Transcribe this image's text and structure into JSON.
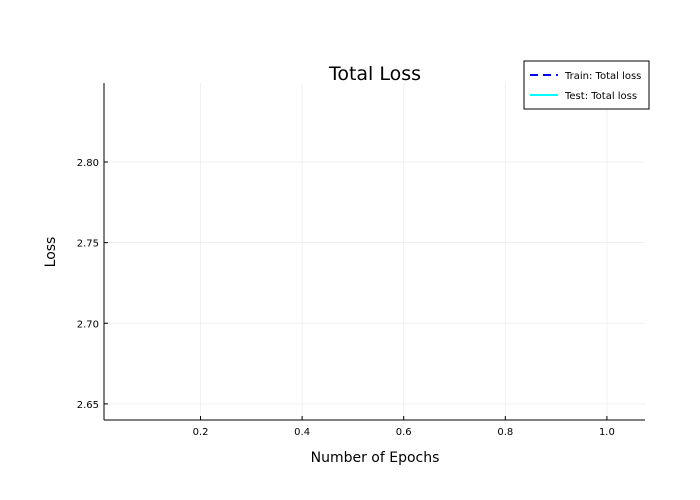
{
  "chart_data": {
    "type": "line",
    "title": "Total Loss",
    "xlabel": "Number of Epochs",
    "ylabel": "Loss",
    "xlim": [
      0.01,
      1.075
    ],
    "ylim": [
      2.64,
      2.849
    ],
    "xticks": [
      0.2,
      0.4,
      0.6,
      0.8,
      1.0
    ],
    "xtick_labels": [
      "0.2",
      "0.4",
      "0.6",
      "0.8",
      "1.0"
    ],
    "yticks": [
      2.65,
      2.7,
      2.75,
      2.8
    ],
    "ytick_labels": [
      "2.65",
      "2.70",
      "2.75",
      "2.80"
    ],
    "grid": true,
    "legend_position": "top-right",
    "series": [
      {
        "name": "Train: Total loss",
        "color": "#0000ff",
        "dash": "dashed",
        "x": [],
        "y": []
      },
      {
        "name": "Test: Total loss",
        "color": "#00ffff",
        "dash": "solid",
        "x": [],
        "y": []
      }
    ]
  }
}
